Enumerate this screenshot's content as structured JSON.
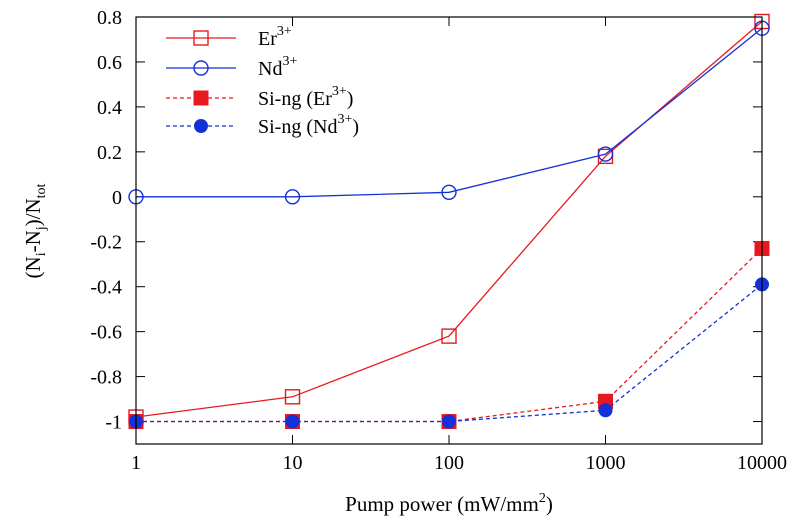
{
  "chart_data": {
    "type": "line",
    "xscale": "log",
    "xlim": [
      1,
      10000
    ],
    "ylim": [
      -1.1,
      0.8
    ],
    "x": [
      1,
      10,
      100,
      1000,
      10000
    ],
    "xticks": [
      1,
      10,
      100,
      1000,
      10000
    ],
    "xtick_labels": [
      "1",
      "10",
      "100",
      "1000",
      "10000"
    ],
    "yticks": [
      -1,
      -0.8,
      -0.6,
      -0.4,
      -0.2,
      0,
      0.2,
      0.4,
      0.6,
      0.8
    ],
    "ytick_labels": [
      "-1",
      "-0.8",
      "-0.6",
      "-0.4",
      "-0.2",
      "0",
      "0.2",
      "0.4",
      "0.6",
      "0.8"
    ],
    "xlabel": {
      "text": "Pump power (mW/mm",
      "sup": "2",
      "tail": ")"
    },
    "ylabel": {
      "p1": "(N",
      "s1": "i",
      "p2": "-N",
      "s2": "j",
      "p3": ")/N",
      "s3": "tot"
    },
    "grid": false,
    "legend_position": "top-left",
    "series": [
      {
        "name": "Er",
        "name_sup": "3+",
        "name_tail": "",
        "color": "#e8191e",
        "line": "solid",
        "marker": "open-square",
        "values": [
          -0.98,
          -0.89,
          -0.62,
          0.18,
          0.78
        ]
      },
      {
        "name": "Nd",
        "name_sup": "3+",
        "name_tail": "",
        "color": "#1431d8",
        "line": "solid",
        "marker": "open-circle",
        "values": [
          0.0,
          0.0,
          0.02,
          0.19,
          0.75
        ]
      },
      {
        "name": "Si-ng (Er",
        "name_sup": "3+",
        "name_tail": ")",
        "color": "#e8191e",
        "line": "dashed",
        "marker": "filled-square",
        "values": [
          -1.0,
          -1.0,
          -1.0,
          -0.91,
          -0.23
        ]
      },
      {
        "name": "Si-ng (Nd",
        "name_sup": "3+",
        "name_tail": ")",
        "color": "#1431d8",
        "line": "dashed",
        "marker": "filled-circle",
        "values": [
          -1.0,
          -1.0,
          -1.0,
          -0.95,
          -0.39
        ]
      }
    ]
  }
}
